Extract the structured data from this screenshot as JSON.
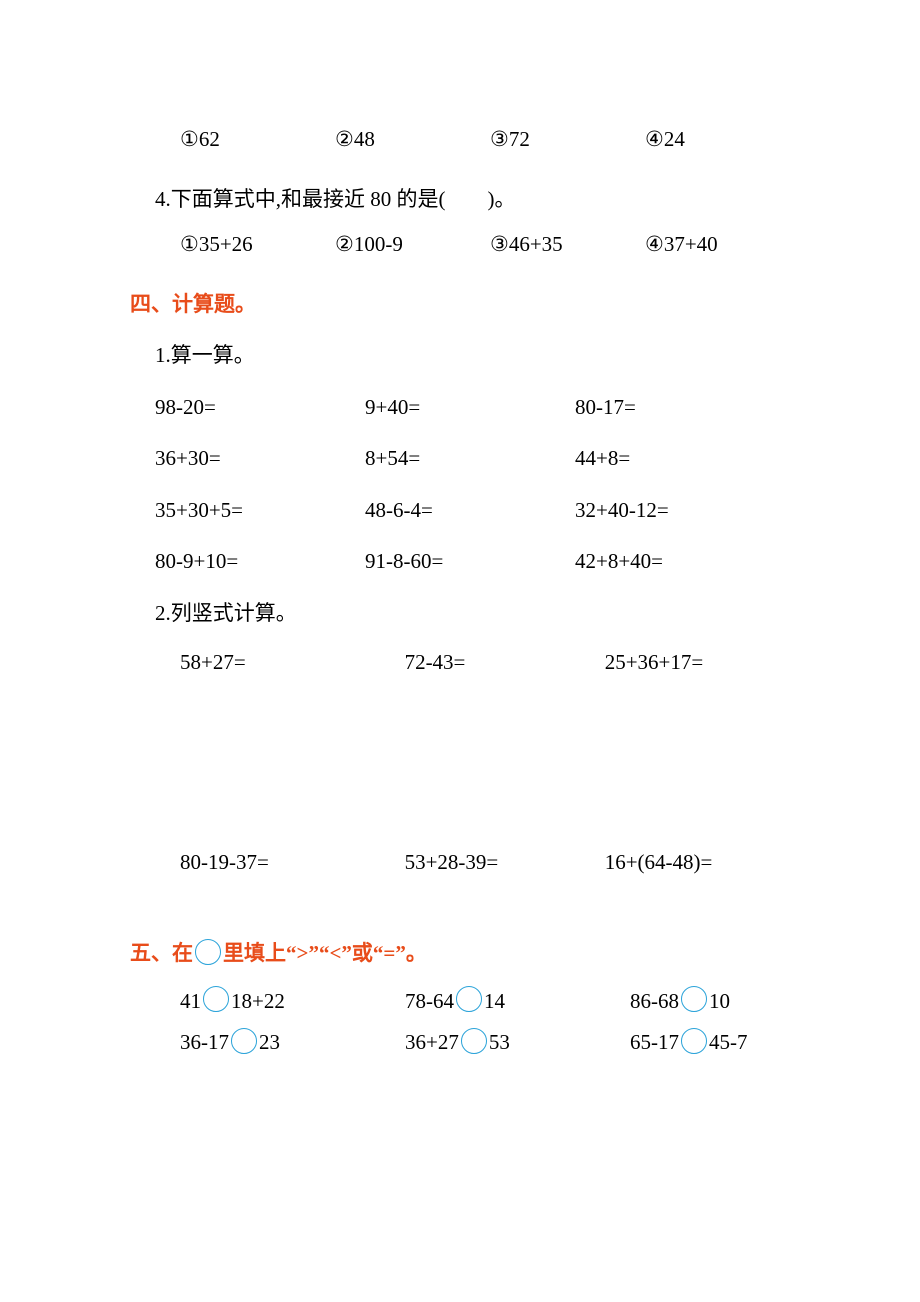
{
  "q3_options": {
    "opts": [
      "①62",
      "②48",
      "③72",
      "④24"
    ]
  },
  "q4": {
    "text": "4.下面算式中,和最接近 80 的是(　　)。",
    "opts": [
      "①35+26",
      "②100-9",
      "③46+35",
      "④37+40"
    ]
  },
  "section4": {
    "title": "四、计算题。",
    "sub1": "1.算一算。",
    "row1": [
      "98-20=",
      "9+40=",
      "80-17="
    ],
    "row2": [
      "36+30=",
      "8+54=",
      "44+8="
    ],
    "row3": [
      "35+30+5=",
      "48-6-4=",
      "32+40-12="
    ],
    "row4": [
      "80-9+10=",
      "91-8-60=",
      "42+8+40="
    ],
    "sub2": "2.列竖式计算。",
    "vrow1": [
      "58+27=",
      "72-43=",
      "25+36+17="
    ],
    "vrow2": [
      "80-19-37=",
      "53+28-39=",
      "16+(64-48)="
    ]
  },
  "section5": {
    "pre": "五、在",
    "mid": "里填上“>”“<”或“=”。",
    "row1": {
      "a_l": "41",
      "a_r": "18+22",
      "b_l": "78-64",
      "b_r": "14",
      "c_l": "86-68",
      "c_r": "10"
    },
    "row2": {
      "a_l": "36-17",
      "a_r": "23",
      "b_l": "36+27",
      "b_r": "53",
      "c_l": "65-17",
      "c_r": "45-7"
    }
  }
}
